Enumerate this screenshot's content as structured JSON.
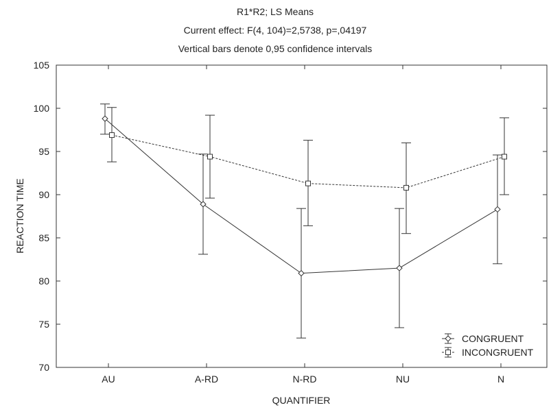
{
  "chart_data": {
    "type": "line",
    "title": "R1*R2; LS Means",
    "subtitle": "Current effect: F(4, 104)=2,5738, p=,04197",
    "note": "Vertical bars denote 0,95 confidence intervals",
    "xlabel": "QUANTIFIER",
    "ylabel": "REACTION TIME",
    "categories": [
      "AU",
      "A-RD",
      "N-RD",
      "NU",
      "N"
    ],
    "ylim": [
      70,
      105
    ],
    "yticks": [
      70,
      75,
      80,
      85,
      90,
      95,
      100,
      105
    ],
    "grid": false,
    "legend_position": "bottom-right",
    "error_bars": "0.95 confidence intervals",
    "series": [
      {
        "name": "CONGRUENT",
        "marker": "diamond",
        "line_style": "solid",
        "color": "#333333",
        "values": [
          98.8,
          88.9,
          80.9,
          81.5,
          88.3
        ],
        "ci_lower": [
          97.0,
          83.1,
          73.4,
          74.6,
          82.0
        ],
        "ci_upper": [
          100.5,
          94.7,
          88.4,
          88.4,
          94.6
        ]
      },
      {
        "name": "INCONGRUENT",
        "marker": "square",
        "line_style": "dashed",
        "color": "#333333",
        "values": [
          96.9,
          94.4,
          91.3,
          90.8,
          94.4
        ],
        "ci_lower": [
          93.8,
          89.6,
          86.4,
          85.5,
          90.0
        ],
        "ci_upper": [
          100.1,
          99.2,
          96.3,
          96.0,
          98.9
        ]
      }
    ]
  }
}
